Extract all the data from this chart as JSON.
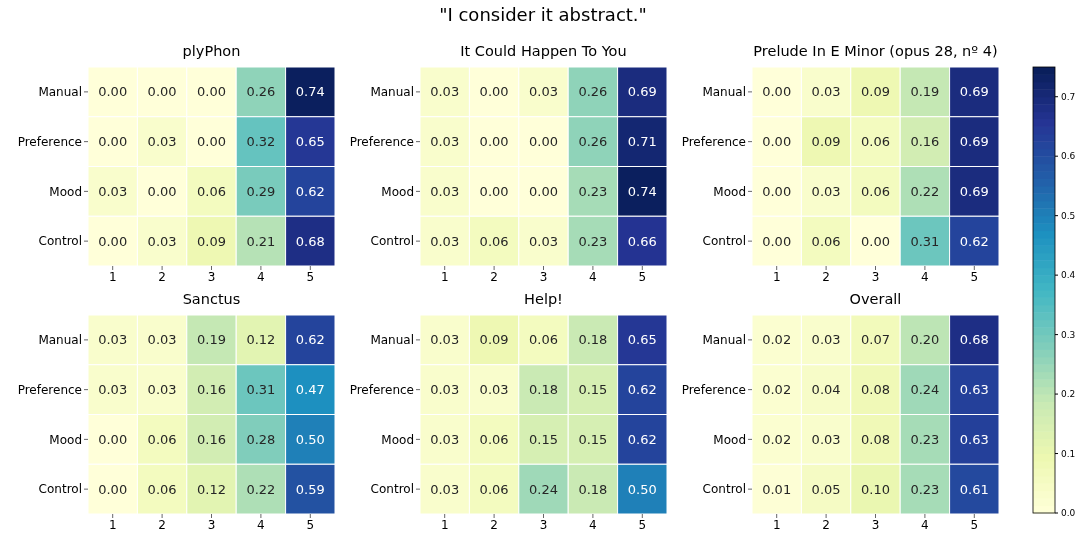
{
  "chart_data": [
    {
      "type": "other",
      "title": "\"I consider it abstract.\""
    },
    {
      "type": "heatmap",
      "title": "plyPhon",
      "categories": [
        "1",
        "2",
        "3",
        "4",
        "5"
      ],
      "y_categories": [
        "Manual",
        "Preference",
        "Mood",
        "Control"
      ],
      "cells": [
        [
          0.0,
          0.0,
          0.0,
          0.26,
          0.74
        ],
        [
          0.0,
          0.03,
          0.0,
          0.32,
          0.65
        ],
        [
          0.03,
          0.0,
          0.06,
          0.29,
          0.62
        ],
        [
          0.0,
          0.03,
          0.09,
          0.21,
          0.68
        ]
      ],
      "cell_labels": [
        [
          "0.00",
          "0.00",
          "0.00",
          "0.26",
          "0.74"
        ],
        [
          "0.00",
          "0.03",
          "0.00",
          "0.32",
          "0.65"
        ],
        [
          "0.03",
          "0.00",
          "0.06",
          "0.29",
          "0.62"
        ],
        [
          "0.00",
          "0.03",
          "0.09",
          "0.21",
          "0.68"
        ]
      ]
    },
    {
      "type": "heatmap",
      "title": "It Could Happen To You",
      "categories": [
        "1",
        "2",
        "3",
        "4",
        "5"
      ],
      "y_categories": [
        "Manual",
        "Preference",
        "Mood",
        "Control"
      ],
      "cells": [
        [
          0.03,
          0.0,
          0.03,
          0.26,
          0.69
        ],
        [
          0.03,
          0.0,
          0.0,
          0.26,
          0.71
        ],
        [
          0.03,
          0.0,
          0.0,
          0.23,
          0.74
        ],
        [
          0.03,
          0.06,
          0.03,
          0.23,
          0.66
        ]
      ],
      "cell_labels": [
        [
          "0.03",
          "0.00",
          "0.03",
          "0.26",
          "0.69"
        ],
        [
          "0.03",
          "0.00",
          "0.00",
          "0.26",
          "0.71"
        ],
        [
          "0.03",
          "0.00",
          "0.00",
          "0.23",
          "0.74"
        ],
        [
          "0.03",
          "0.06",
          "0.03",
          "0.23",
          "0.66"
        ]
      ]
    },
    {
      "type": "heatmap",
      "title": "Prelude In E Minor (opus 28, nº 4)",
      "categories": [
        "1",
        "2",
        "3",
        "4",
        "5"
      ],
      "y_categories": [
        "Manual",
        "Preference",
        "Mood",
        "Control"
      ],
      "cells": [
        [
          0.0,
          0.03,
          0.09,
          0.19,
          0.69
        ],
        [
          0.0,
          0.09,
          0.06,
          0.16,
          0.69
        ],
        [
          0.0,
          0.03,
          0.06,
          0.22,
          0.69
        ],
        [
          0.0,
          0.06,
          0.0,
          0.31,
          0.62
        ]
      ],
      "cell_labels": [
        [
          "0.00",
          "0.03",
          "0.09",
          "0.19",
          "0.69"
        ],
        [
          "0.00",
          "0.09",
          "0.06",
          "0.16",
          "0.69"
        ],
        [
          "0.00",
          "0.03",
          "0.06",
          "0.22",
          "0.69"
        ],
        [
          "0.00",
          "0.06",
          "0.00",
          "0.31",
          "0.62"
        ]
      ]
    },
    {
      "type": "heatmap",
      "title": "Sanctus",
      "categories": [
        "1",
        "2",
        "3",
        "4",
        "5"
      ],
      "y_categories": [
        "Manual",
        "Preference",
        "Mood",
        "Control"
      ],
      "cells": [
        [
          0.03,
          0.03,
          0.19,
          0.12,
          0.62
        ],
        [
          0.03,
          0.03,
          0.16,
          0.31,
          0.47
        ],
        [
          0.0,
          0.06,
          0.16,
          0.28,
          0.5
        ],
        [
          0.0,
          0.06,
          0.12,
          0.22,
          0.59
        ]
      ],
      "cell_labels": [
        [
          "0.03",
          "0.03",
          "0.19",
          "0.12",
          "0.62"
        ],
        [
          "0.03",
          "0.03",
          "0.16",
          "0.31",
          "0.47"
        ],
        [
          "0.00",
          "0.06",
          "0.16",
          "0.28",
          "0.50"
        ],
        [
          "0.00",
          "0.06",
          "0.12",
          "0.22",
          "0.59"
        ]
      ]
    },
    {
      "type": "heatmap",
      "title": "Help!",
      "categories": [
        "1",
        "2",
        "3",
        "4",
        "5"
      ],
      "y_categories": [
        "Manual",
        "Preference",
        "Mood",
        "Control"
      ],
      "cells": [
        [
          0.03,
          0.09,
          0.06,
          0.18,
          0.65
        ],
        [
          0.03,
          0.03,
          0.18,
          0.15,
          0.62
        ],
        [
          0.03,
          0.06,
          0.15,
          0.15,
          0.62
        ],
        [
          0.03,
          0.06,
          0.24,
          0.18,
          0.5
        ]
      ],
      "cell_labels": [
        [
          "0.03",
          "0.09",
          "0.06",
          "0.18",
          "0.65"
        ],
        [
          "0.03",
          "0.03",
          "0.18",
          "0.15",
          "0.62"
        ],
        [
          "0.03",
          "0.06",
          "0.15",
          "0.15",
          "0.62"
        ],
        [
          "0.03",
          "0.06",
          "0.24",
          "0.18",
          "0.50"
        ]
      ]
    },
    {
      "type": "heatmap",
      "title": "Overall",
      "categories": [
        "1",
        "2",
        "3",
        "4",
        "5"
      ],
      "y_categories": [
        "Manual",
        "Preference",
        "Mood",
        "Control"
      ],
      "clim": [
        0,
        0.75
      ],
      "cticks": [
        {
          "value": 0,
          "label": "0.0"
        },
        0.1,
        0.2,
        0.3,
        0.4,
        0.5,
        0.6,
        0.7
      ],
      "cells": [
        [
          0.02,
          0.03,
          0.07,
          0.2,
          0.68
        ],
        [
          0.02,
          0.04,
          0.08,
          0.24,
          0.63
        ],
        [
          0.02,
          0.03,
          0.08,
          0.23,
          0.63
        ],
        [
          0.01,
          0.05,
          0.1,
          0.23,
          0.61
        ]
      ],
      "cell_labels": [
        [
          "0.02",
          "0.03",
          "0.07",
          "0.20",
          "0.68"
        ],
        [
          "0.02",
          "0.04",
          "0.08",
          "0.24",
          "0.63"
        ],
        [
          "0.02",
          "0.03",
          "0.08",
          "0.23",
          "0.63"
        ],
        [
          "0.01",
          "0.05",
          "0.10",
          "0.23",
          "0.61"
        ]
      ]
    }
  ]
}
